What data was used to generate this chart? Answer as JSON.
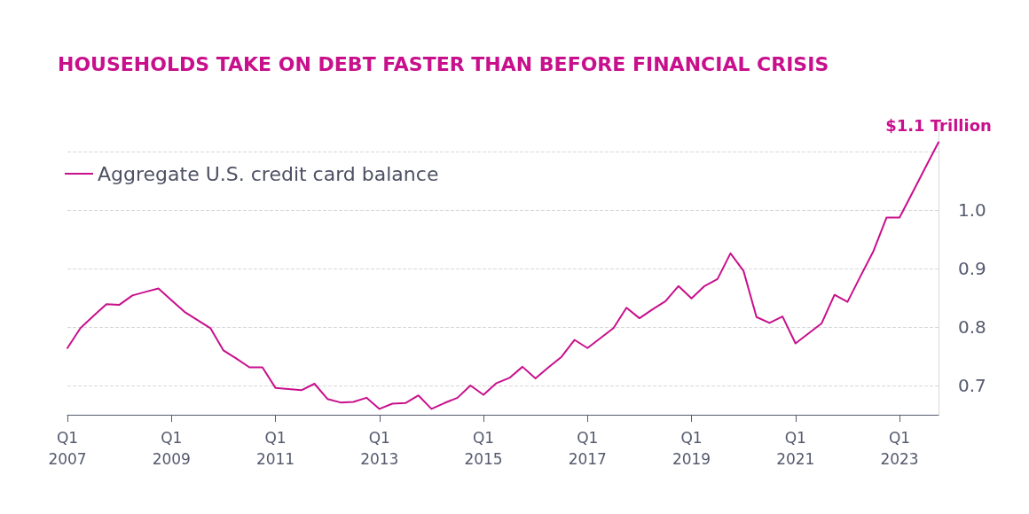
{
  "chart_data": {
    "type": "line",
    "title": "HOUSEHOLDS TAKE ON DEBT FASTER THAN BEFORE FINANCIAL CRISIS",
    "categories": [
      "Q1\n2007",
      null,
      null,
      null,
      null,
      null,
      null,
      null,
      "Q1\n2009",
      null,
      null,
      null,
      null,
      null,
      null,
      null,
      "Q1\n2011",
      null,
      null,
      null,
      null,
      null,
      null,
      null,
      "Q1\n2013",
      null,
      null,
      null,
      null,
      null,
      null,
      null,
      "Q1\n2015",
      null,
      null,
      null,
      null,
      null,
      null,
      null,
      "Q1\n2017",
      null,
      null,
      null,
      null,
      null,
      null,
      null,
      "Q1\n2019",
      null,
      null,
      null,
      null,
      null,
      null,
      null,
      "Q1\n2021",
      null,
      null,
      null,
      null,
      null,
      null,
      null,
      "Q1\n2023",
      null,
      null,
      null
    ],
    "series": [
      {
        "name": "Aggregate U.S. credit card balance",
        "color": "#c8108c",
        "values": [
          0.764,
          0.798,
          0.819,
          0.839,
          0.838,
          0.854,
          0.86,
          0.866,
          0.846,
          0.826,
          0.812,
          0.798,
          0.76,
          0.746,
          0.731,
          0.731,
          0.696,
          0.694,
          0.692,
          0.703,
          0.677,
          0.671,
          0.672,
          0.679,
          0.66,
          0.669,
          0.67,
          0.683,
          0.66,
          0.67,
          0.679,
          0.7,
          0.684,
          0.704,
          0.713,
          0.732,
          0.712,
          0.731,
          0.749,
          0.778,
          0.764,
          0.781,
          0.798,
          0.833,
          0.815,
          0.83,
          0.844,
          0.87,
          0.849,
          0.87,
          0.882,
          0.926,
          0.896,
          0.817,
          0.807,
          0.818,
          0.772,
          0.789,
          0.806,
          0.855,
          0.843,
          0.887,
          0.93,
          0.987,
          0.987,
          1.03,
          1.073,
          1.116
        ]
      }
    ],
    "ylim": [
      0.65,
      1.15
    ],
    "yticks": [
      {
        "value": 0.7,
        "label": "0.7"
      },
      {
        "value": 0.8,
        "label": "0.8"
      },
      {
        "value": 0.9,
        "label": "0.9"
      },
      {
        "value": 1.0,
        "label": "1.0"
      },
      {
        "value": 1.1,
        "label": null
      }
    ],
    "annotations": [
      {
        "text": "$1.1 Trillion",
        "y": 1.116
      }
    ],
    "grid": "y",
    "legend": "top left",
    "marker": "none",
    "line_style": "solid"
  }
}
